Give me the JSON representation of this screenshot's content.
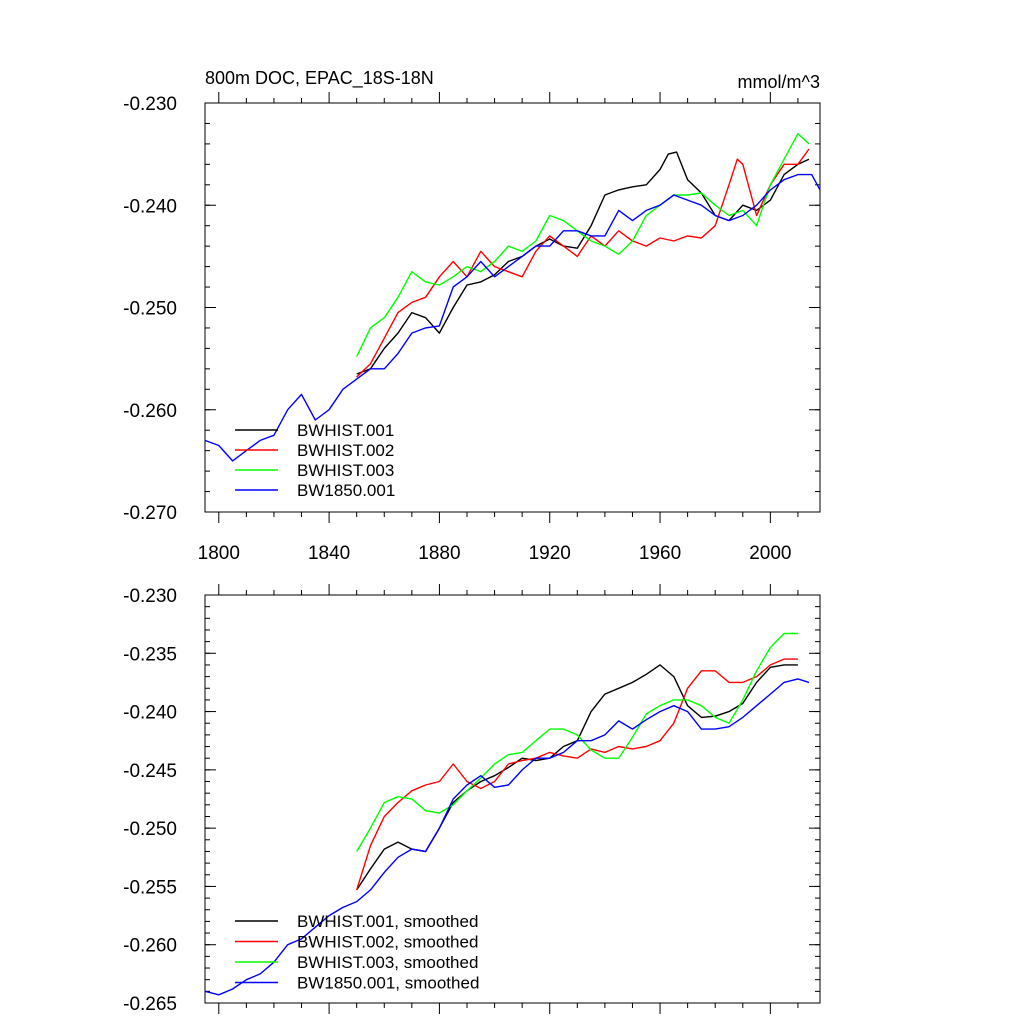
{
  "chart_data": [
    {
      "type": "line",
      "title": "800m DOC, EPAC_18S-18N",
      "units": "mmol/m^3",
      "xlim": [
        1795,
        2018
      ],
      "ylim": [
        -0.27,
        -0.23
      ],
      "xticks": [
        "1800",
        "1840",
        "1880",
        "1920",
        "1960",
        "2000"
      ],
      "yticks": [
        "-0.230",
        "-0.240",
        "-0.250",
        "-0.260",
        "-0.270"
      ],
      "legend": "bottom-left",
      "series": [
        {
          "name": "BWHIST.001",
          "color": "#000000",
          "x": [
            1850,
            1855,
            1860,
            1865,
            1870,
            1875,
            1880,
            1885,
            1890,
            1895,
            1900,
            1905,
            1910,
            1915,
            1920,
            1925,
            1930,
            1935,
            1940,
            1945,
            1950,
            1955,
            1960,
            1963,
            1966,
            1970,
            1975,
            1980,
            1985,
            1990,
            1995,
            2000,
            2005,
            2010,
            2014
          ],
          "y": [
            -0.2565,
            -0.256,
            -0.254,
            -0.2525,
            -0.2505,
            -0.251,
            -0.2525,
            -0.25,
            -0.2478,
            -0.2475,
            -0.2468,
            -0.2455,
            -0.245,
            -0.244,
            -0.2433,
            -0.244,
            -0.2442,
            -0.242,
            -0.239,
            -0.2385,
            -0.2382,
            -0.238,
            -0.2365,
            -0.235,
            -0.2348,
            -0.2375,
            -0.2388,
            -0.241,
            -0.2415,
            -0.24,
            -0.2405,
            -0.2395,
            -0.237,
            -0.236,
            -0.2355
          ]
        },
        {
          "name": "BWHIST.002",
          "color": "#ff0000",
          "x": [
            1850,
            1855,
            1860,
            1865,
            1870,
            1875,
            1880,
            1885,
            1890,
            1895,
            1900,
            1905,
            1910,
            1915,
            1920,
            1925,
            1930,
            1935,
            1940,
            1945,
            1950,
            1955,
            1960,
            1965,
            1970,
            1975,
            1980,
            1985,
            1988,
            1990,
            1995,
            2000,
            2005,
            2010,
            2014
          ],
          "y": [
            -0.2568,
            -0.2555,
            -0.253,
            -0.2505,
            -0.2495,
            -0.249,
            -0.247,
            -0.2455,
            -0.247,
            -0.2445,
            -0.246,
            -0.2465,
            -0.247,
            -0.2445,
            -0.243,
            -0.244,
            -0.245,
            -0.243,
            -0.244,
            -0.2425,
            -0.2435,
            -0.244,
            -0.2432,
            -0.2435,
            -0.243,
            -0.2432,
            -0.242,
            -0.238,
            -0.2355,
            -0.236,
            -0.241,
            -0.238,
            -0.236,
            -0.236,
            -0.2345
          ]
        },
        {
          "name": "BWHIST.003",
          "color": "#00ff00",
          "x": [
            1850,
            1855,
            1860,
            1865,
            1870,
            1875,
            1880,
            1885,
            1890,
            1895,
            1900,
            1905,
            1910,
            1915,
            1920,
            1925,
            1930,
            1935,
            1940,
            1945,
            1950,
            1955,
            1960,
            1965,
            1970,
            1975,
            1980,
            1985,
            1990,
            1995,
            2000,
            2005,
            2010,
            2014
          ],
          "y": [
            -0.2548,
            -0.252,
            -0.251,
            -0.249,
            -0.2465,
            -0.2475,
            -0.2478,
            -0.247,
            -0.246,
            -0.2465,
            -0.2455,
            -0.244,
            -0.2445,
            -0.2435,
            -0.241,
            -0.2415,
            -0.2425,
            -0.2435,
            -0.244,
            -0.2448,
            -0.2435,
            -0.241,
            -0.24,
            -0.239,
            -0.239,
            -0.2388,
            -0.24,
            -0.241,
            -0.2405,
            -0.242,
            -0.238,
            -0.2355,
            -0.233,
            -0.234
          ]
        },
        {
          "name": "BW1850.001",
          "color": "#0000ff",
          "x": [
            1795,
            1800,
            1805,
            1810,
            1815,
            1820,
            1825,
            1830,
            1835,
            1840,
            1845,
            1850,
            1855,
            1860,
            1865,
            1870,
            1875,
            1880,
            1885,
            1890,
            1895,
            1900,
            1905,
            1910,
            1915,
            1920,
            1925,
            1930,
            1935,
            1940,
            1945,
            1950,
            1955,
            1960,
            1965,
            1970,
            1975,
            1980,
            1985,
            1990,
            1995,
            2000,
            2005,
            2010,
            2015,
            2018
          ],
          "y": [
            -0.263,
            -0.2635,
            -0.265,
            -0.264,
            -0.263,
            -0.2625,
            -0.26,
            -0.2585,
            -0.261,
            -0.26,
            -0.258,
            -0.257,
            -0.256,
            -0.256,
            -0.2545,
            -0.2525,
            -0.252,
            -0.2518,
            -0.248,
            -0.247,
            -0.2455,
            -0.247,
            -0.246,
            -0.245,
            -0.244,
            -0.244,
            -0.2425,
            -0.2425,
            -0.243,
            -0.243,
            -0.2405,
            -0.2415,
            -0.2405,
            -0.24,
            -0.239,
            -0.2395,
            -0.24,
            -0.241,
            -0.2415,
            -0.241,
            -0.24,
            -0.2385,
            -0.2375,
            -0.237,
            -0.237,
            -0.2385
          ]
        }
      ]
    },
    {
      "type": "line",
      "title": "",
      "units": "",
      "xlim": [
        1795,
        2018
      ],
      "ylim": [
        -0.265,
        -0.23
      ],
      "xticks": [],
      "yticks": [
        "-0.230",
        "-0.235",
        "-0.240",
        "-0.245",
        "-0.250",
        "-0.255",
        "-0.260",
        "-0.265"
      ],
      "legend": "bottom-left",
      "series": [
        {
          "name": "BWHIST.001, smoothed",
          "color": "#000000",
          "x": [
            1850,
            1855,
            1860,
            1865,
            1870,
            1875,
            1880,
            1885,
            1890,
            1895,
            1900,
            1905,
            1910,
            1915,
            1920,
            1925,
            1930,
            1935,
            1940,
            1945,
            1950,
            1955,
            1960,
            1965,
            1970,
            1975,
            1980,
            1985,
            1990,
            1995,
            2000,
            2005,
            2010
          ],
          "y": [
            -0.2553,
            -0.2535,
            -0.2518,
            -0.2512,
            -0.2518,
            -0.252,
            -0.25,
            -0.2478,
            -0.2468,
            -0.246,
            -0.2455,
            -0.2448,
            -0.244,
            -0.2442,
            -0.244,
            -0.243,
            -0.2425,
            -0.24,
            -0.2385,
            -0.238,
            -0.2375,
            -0.2368,
            -0.236,
            -0.237,
            -0.2395,
            -0.2405,
            -0.2404,
            -0.24,
            -0.2393,
            -0.2375,
            -0.2362,
            -0.236,
            -0.236
          ]
        },
        {
          "name": "BWHIST.002, smoothed",
          "color": "#ff0000",
          "x": [
            1850,
            1855,
            1860,
            1865,
            1870,
            1875,
            1880,
            1885,
            1890,
            1895,
            1900,
            1905,
            1910,
            1915,
            1920,
            1925,
            1930,
            1935,
            1940,
            1945,
            1950,
            1955,
            1960,
            1965,
            1970,
            1975,
            1980,
            1985,
            1990,
            1995,
            2000,
            2005,
            2010
          ],
          "y": [
            -0.2553,
            -0.2515,
            -0.249,
            -0.2478,
            -0.2468,
            -0.2463,
            -0.246,
            -0.2445,
            -0.246,
            -0.2466,
            -0.246,
            -0.2445,
            -0.2442,
            -0.244,
            -0.2435,
            -0.2438,
            -0.244,
            -0.2432,
            -0.2435,
            -0.243,
            -0.2432,
            -0.243,
            -0.2425,
            -0.241,
            -0.238,
            -0.2365,
            -0.2365,
            -0.2375,
            -0.2375,
            -0.237,
            -0.236,
            -0.2355,
            -0.2355
          ]
        },
        {
          "name": "BWHIST.003, smoothed",
          "color": "#00ff00",
          "x": [
            1850,
            1855,
            1860,
            1865,
            1870,
            1875,
            1880,
            1885,
            1890,
            1895,
            1900,
            1905,
            1910,
            1915,
            1920,
            1925,
            1930,
            1935,
            1940,
            1945,
            1950,
            1955,
            1960,
            1965,
            1970,
            1975,
            1980,
            1985,
            1990,
            1995,
            2000,
            2005,
            2010
          ],
          "y": [
            -0.252,
            -0.25,
            -0.2478,
            -0.2473,
            -0.2475,
            -0.2485,
            -0.2487,
            -0.248,
            -0.2468,
            -0.2457,
            -0.2445,
            -0.2437,
            -0.2435,
            -0.2425,
            -0.2415,
            -0.2415,
            -0.242,
            -0.2433,
            -0.244,
            -0.244,
            -0.2422,
            -0.2402,
            -0.2395,
            -0.239,
            -0.239,
            -0.2395,
            -0.2405,
            -0.241,
            -0.239,
            -0.2365,
            -0.2345,
            -0.2333,
            -0.2333
          ]
        },
        {
          "name": "BW1850.001, smoothed",
          "color": "#0000ff",
          "x": [
            1795,
            1800,
            1805,
            1810,
            1815,
            1820,
            1825,
            1830,
            1835,
            1840,
            1845,
            1850,
            1855,
            1860,
            1865,
            1870,
            1875,
            1880,
            1885,
            1890,
            1895,
            1900,
            1905,
            1910,
            1915,
            1920,
            1925,
            1930,
            1935,
            1940,
            1945,
            1950,
            1955,
            1960,
            1965,
            1970,
            1975,
            1980,
            1985,
            1990,
            1995,
            2000,
            2005,
            2010,
            2014
          ],
          "y": [
            -0.264,
            -0.2643,
            -0.2638,
            -0.263,
            -0.2625,
            -0.2615,
            -0.26,
            -0.2595,
            -0.2585,
            -0.2575,
            -0.2568,
            -0.2563,
            -0.2553,
            -0.2538,
            -0.2525,
            -0.2518,
            -0.252,
            -0.25,
            -0.2475,
            -0.2463,
            -0.2455,
            -0.2465,
            -0.2463,
            -0.245,
            -0.244,
            -0.244,
            -0.2435,
            -0.2425,
            -0.2425,
            -0.242,
            -0.2408,
            -0.2415,
            -0.2407,
            -0.24,
            -0.2395,
            -0.24,
            -0.2415,
            -0.2415,
            -0.2413,
            -0.2405,
            -0.2395,
            -0.2385,
            -0.2375,
            -0.2372,
            -0.2375
          ]
        }
      ]
    }
  ]
}
